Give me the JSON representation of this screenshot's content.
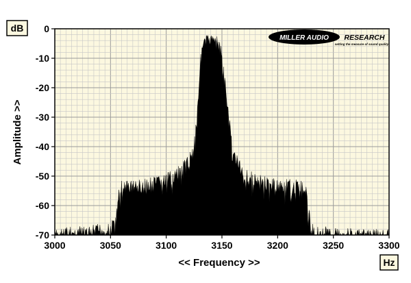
{
  "chart_data": {
    "type": "area",
    "xlabel": "<< Frequency >>",
    "ylabel": "Amplitude >>",
    "x_unit": "Hz",
    "y_unit": "dB",
    "xlim": [
      3000,
      3300
    ],
    "ylim": [
      -70,
      0
    ],
    "x_ticks": [
      3000,
      3050,
      3100,
      3150,
      3200,
      3250,
      3300
    ],
    "y_ticks": [
      0,
      -10,
      -20,
      -30,
      -40,
      -50,
      -60,
      -70
    ],
    "grid": true,
    "colors": {
      "plot_bg": "#fcf8e0",
      "grid": "#c6c6c6",
      "fill": "#000000"
    },
    "series": [
      {
        "fill": "black",
        "points": [
          [
            3000,
            -68
          ],
          [
            3010,
            -67
          ],
          [
            3020,
            -67
          ],
          [
            3030,
            -67
          ],
          [
            3040,
            -66
          ],
          [
            3050,
            -66
          ],
          [
            3055,
            -62
          ],
          [
            3057,
            -55
          ],
          [
            3060,
            -51
          ],
          [
            3070,
            -51
          ],
          [
            3080,
            -51
          ],
          [
            3090,
            -50
          ],
          [
            3100,
            -49
          ],
          [
            3105,
            -48
          ],
          [
            3110,
            -47
          ],
          [
            3115,
            -45
          ],
          [
            3120,
            -43
          ],
          [
            3125,
            -37
          ],
          [
            3128,
            -25
          ],
          [
            3130,
            -12
          ],
          [
            3132,
            -5
          ],
          [
            3135,
            -2
          ],
          [
            3140,
            -2
          ],
          [
            3145,
            -2
          ],
          [
            3148,
            -4
          ],
          [
            3150,
            -7
          ],
          [
            3152,
            -14
          ],
          [
            3155,
            -24
          ],
          [
            3158,
            -33
          ],
          [
            3160,
            -39
          ],
          [
            3165,
            -44
          ],
          [
            3170,
            -47
          ],
          [
            3180,
            -49
          ],
          [
            3190,
            -50
          ],
          [
            3200,
            -51
          ],
          [
            3210,
            -51
          ],
          [
            3220,
            -51
          ],
          [
            3225,
            -52
          ],
          [
            3228,
            -60
          ],
          [
            3230,
            -66
          ],
          [
            3240,
            -67
          ],
          [
            3250,
            -67
          ],
          [
            3260,
            -67
          ],
          [
            3270,
            -68
          ],
          [
            3280,
            -68
          ],
          [
            3290,
            -68
          ],
          [
            3300,
            -68
          ]
        ]
      }
    ]
  },
  "logo": {
    "brand": "MILLER AUDIO RESEARCH",
    "tagline": "setting the measure of sound quality"
  }
}
